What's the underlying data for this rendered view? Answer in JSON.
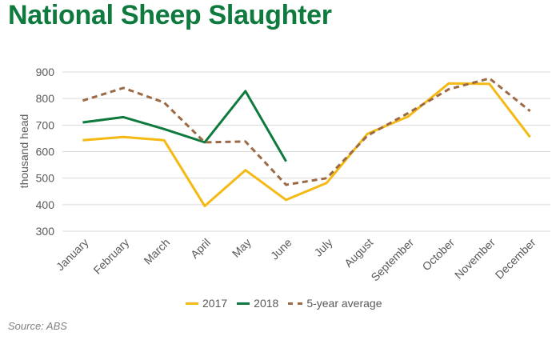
{
  "header": {
    "title": "National Sheep Slaughter"
  },
  "footer": {
    "source": "Source: ABS"
  },
  "chart_data": {
    "type": "line",
    "ylabel": "thousand head",
    "xlabel": "",
    "ylim": [
      300,
      900
    ],
    "yticks": [
      300,
      400,
      500,
      600,
      700,
      800,
      900
    ],
    "grid": true,
    "legend_position": "bottom",
    "categories": [
      "January",
      "February",
      "March",
      "April",
      "May",
      "June",
      "July",
      "August",
      "September",
      "October",
      "November",
      "December"
    ],
    "series": [
      {
        "name": "2017",
        "color": "#f5b914",
        "style": "solid",
        "values": [
          643,
          655,
          643,
          395,
          530,
          418,
          482,
          667,
          732,
          857,
          855,
          655
        ]
      },
      {
        "name": "2018",
        "color": "#0e7a3e",
        "style": "solid",
        "values": [
          710,
          730,
          685,
          635,
          828,
          563,
          null,
          null,
          null,
          null,
          null,
          null
        ]
      },
      {
        "name": "5-year average",
        "color": "#9b6a45",
        "style": "dashed",
        "values": [
          792,
          840,
          785,
          635,
          638,
          475,
          500,
          660,
          745,
          835,
          876,
          753
        ]
      }
    ]
  }
}
